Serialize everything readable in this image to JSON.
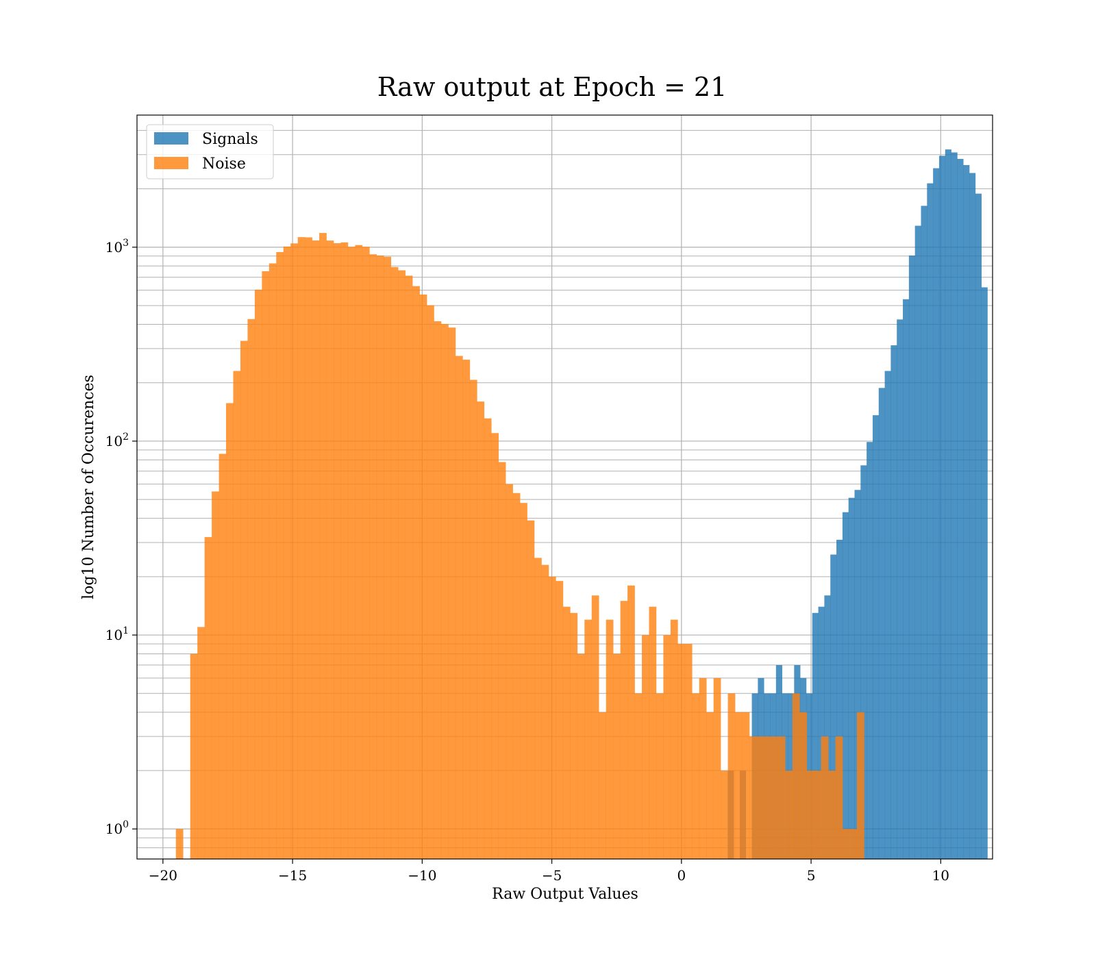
{
  "chart_data": {
    "type": "bar",
    "subtype": "histogram",
    "title": "Raw output at Epoch = 21",
    "xlabel": "Raw Output Values",
    "ylabel": "log10 Number of Occurences",
    "xlim": [
      -21,
      12
    ],
    "ylim": [
      0.7,
      4800
    ],
    "yscale": "log",
    "grid": true,
    "grid_style": "both major and minor",
    "legend_position": "top-left",
    "x_ticks": [
      -20,
      -15,
      -10,
      -5,
      0,
      5,
      10
    ],
    "x_tick_labels": [
      "−20",
      "−15",
      "−10",
      "−5",
      "0",
      "5",
      "10"
    ],
    "y_ticks": [
      1,
      10,
      100,
      1000
    ],
    "y_tick_labels": [
      {
        "base": "10",
        "exp": "0"
      },
      {
        "base": "10",
        "exp": "1"
      },
      {
        "base": "10",
        "exp": "2"
      },
      {
        "base": "10",
        "exp": "3"
      }
    ],
    "series": [
      {
        "name": "Signals",
        "color": "#1f77b4",
        "opacity": 0.8,
        "bin_left": 1.55,
        "bin_width": 0.233,
        "counts": [
          0,
          2,
          0,
          2,
          0,
          5,
          6,
          5,
          5,
          7,
          5,
          5,
          7,
          6,
          5,
          13,
          14,
          16,
          26,
          31,
          43,
          51,
          56,
          75,
          99,
          136,
          188,
          230,
          312,
          424,
          539,
          906,
          1290,
          1634,
          2135,
          2554,
          2961,
          3192,
          3081,
          2853,
          2651,
          2413,
          1889,
          621
        ]
      },
      {
        "name": "Noise",
        "color": "#ff7f0e",
        "opacity": 0.8,
        "bin_left": -19.5,
        "bin_width": 0.2765,
        "counts": [
          1,
          0,
          8,
          11,
          32,
          55,
          86,
          157,
          230,
          329,
          426,
          604,
          752,
          825,
          944,
          1008,
          1046,
          1127,
          1124,
          1083,
          1184,
          1082,
          1049,
          1059,
          1005,
          1026,
          1005,
          919,
          906,
          893,
          790,
          760,
          713,
          630,
          570,
          502,
          415,
          402,
          385,
          275,
          263,
          207,
          160,
          131,
          110,
          78,
          60,
          54,
          48,
          39,
          25,
          23,
          20,
          19,
          14,
          13,
          8,
          12,
          16,
          4,
          12,
          8,
          15,
          18,
          5,
          10,
          14,
          5,
          10,
          12,
          9,
          9,
          5,
          6,
          4,
          6,
          2,
          5,
          4,
          4,
          3,
          3,
          3,
          3,
          3,
          2,
          5,
          4,
          2,
          2,
          3,
          2,
          3,
          1,
          1,
          4
        ]
      }
    ]
  }
}
